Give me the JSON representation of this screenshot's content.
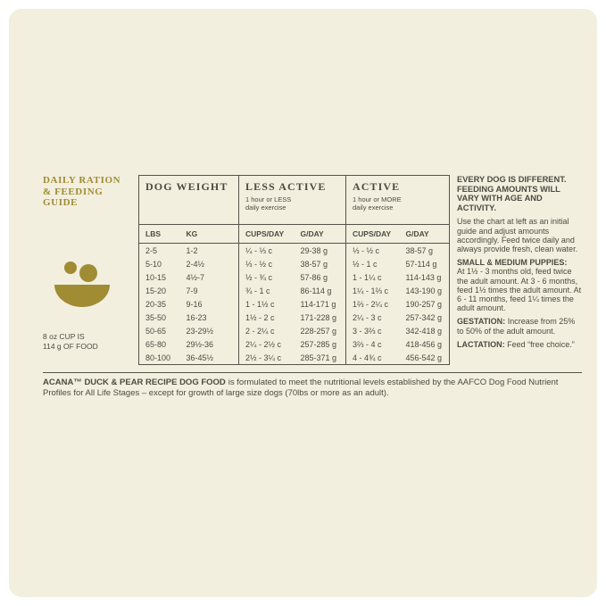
{
  "colors": {
    "card_bg": "#f2efdf",
    "accent_gold": "#9f8c33",
    "text": "#4c4b40",
    "rule": "#55544a"
  },
  "sidebar": {
    "title": "DAILY RATION\n& FEEDING\nGUIDE",
    "cup_note": "8 oz CUP IS\n114 g OF FOOD"
  },
  "table": {
    "group_dog_weight": "DOG WEIGHT",
    "group_less_active": "LESS ACTIVE",
    "less_active_sub": "1 hour or LESS\ndaily exercise",
    "group_active": "ACTIVE",
    "active_sub": "1 hour or MORE\ndaily exercise",
    "col_lbs": "LBS",
    "col_kg": "KG",
    "col_cups_less": "CUPS/DAY",
    "col_g_less": "G/DAY",
    "col_cups_active": "CUPS/DAY",
    "col_g_active": "G/DAY",
    "rows": [
      [
        "2-5",
        "1-2",
        "¼ - ⅓ c",
        "29-38 g",
        "⅓ - ½ c",
        "38-57 g"
      ],
      [
        "5-10",
        "2-4½",
        "⅓ - ½ c",
        "38-57 g",
        "½ - 1 c",
        "57-114 g"
      ],
      [
        "10-15",
        "4½-7",
        "½ - ¾ c",
        "57-86 g",
        "1 - 1¼ c",
        "114-143 g"
      ],
      [
        "15-20",
        "7-9",
        "¾ - 1 c",
        "86-114 g",
        "1¼ - 1⅔ c",
        "143-190 g"
      ],
      [
        "20-35",
        "9-16",
        "1 - 1½ c",
        "114-171 g",
        "1⅔ - 2¼ c",
        "190-257 g"
      ],
      [
        "35-50",
        "16-23",
        "1½ - 2 c",
        "171-228 g",
        "2¼ - 3 c",
        "257-342 g"
      ],
      [
        "50-65",
        "23-29½",
        "2 - 2¼ c",
        "228-257 g",
        "3 - 3⅔ c",
        "342-418 g"
      ],
      [
        "65-80",
        "29½-36",
        "2¼ - 2½ c",
        "257-285 g",
        "3⅔ - 4 c",
        "418-456 g"
      ],
      [
        "80-100",
        "36-45½",
        "2½ - 3¼ c",
        "285-371 g",
        "4 - 4¾ c",
        "456-542 g"
      ]
    ]
  },
  "info": {
    "heading": "EVERY DOG IS DIFFERENT. FEEDING AMOUNTS WILL VARY WITH AGE AND ACTIVITY.",
    "intro": "Use the chart at left as an initial guide and adjust amounts accordingly. Feed twice daily and always provide fresh, clean water.",
    "puppies_label": "SMALL & MEDIUM PUPPIES:",
    "puppies_text": "At 1½ - 3 months old, feed twice the adult amount. At 3 - 6 months, feed 1½ times the adult amount. At 6 - 11 months, feed 1¼ times the adult amount.",
    "gestation_label": "GESTATION:",
    "gestation_text": "Increase from 25% to 50% of the adult amount.",
    "lactation_label": "LACTATION:",
    "lactation_text": "Feed “free choice.”"
  },
  "footnote": {
    "bold": "ACANA™ DUCK & PEAR RECIPE DOG FOOD",
    "text": "is formulated to meet the nutritional levels established by the AAFCO Dog Food Nutrient Profiles for All Life Stages – except for growth of large size dogs (70lbs or more as an adult)."
  }
}
